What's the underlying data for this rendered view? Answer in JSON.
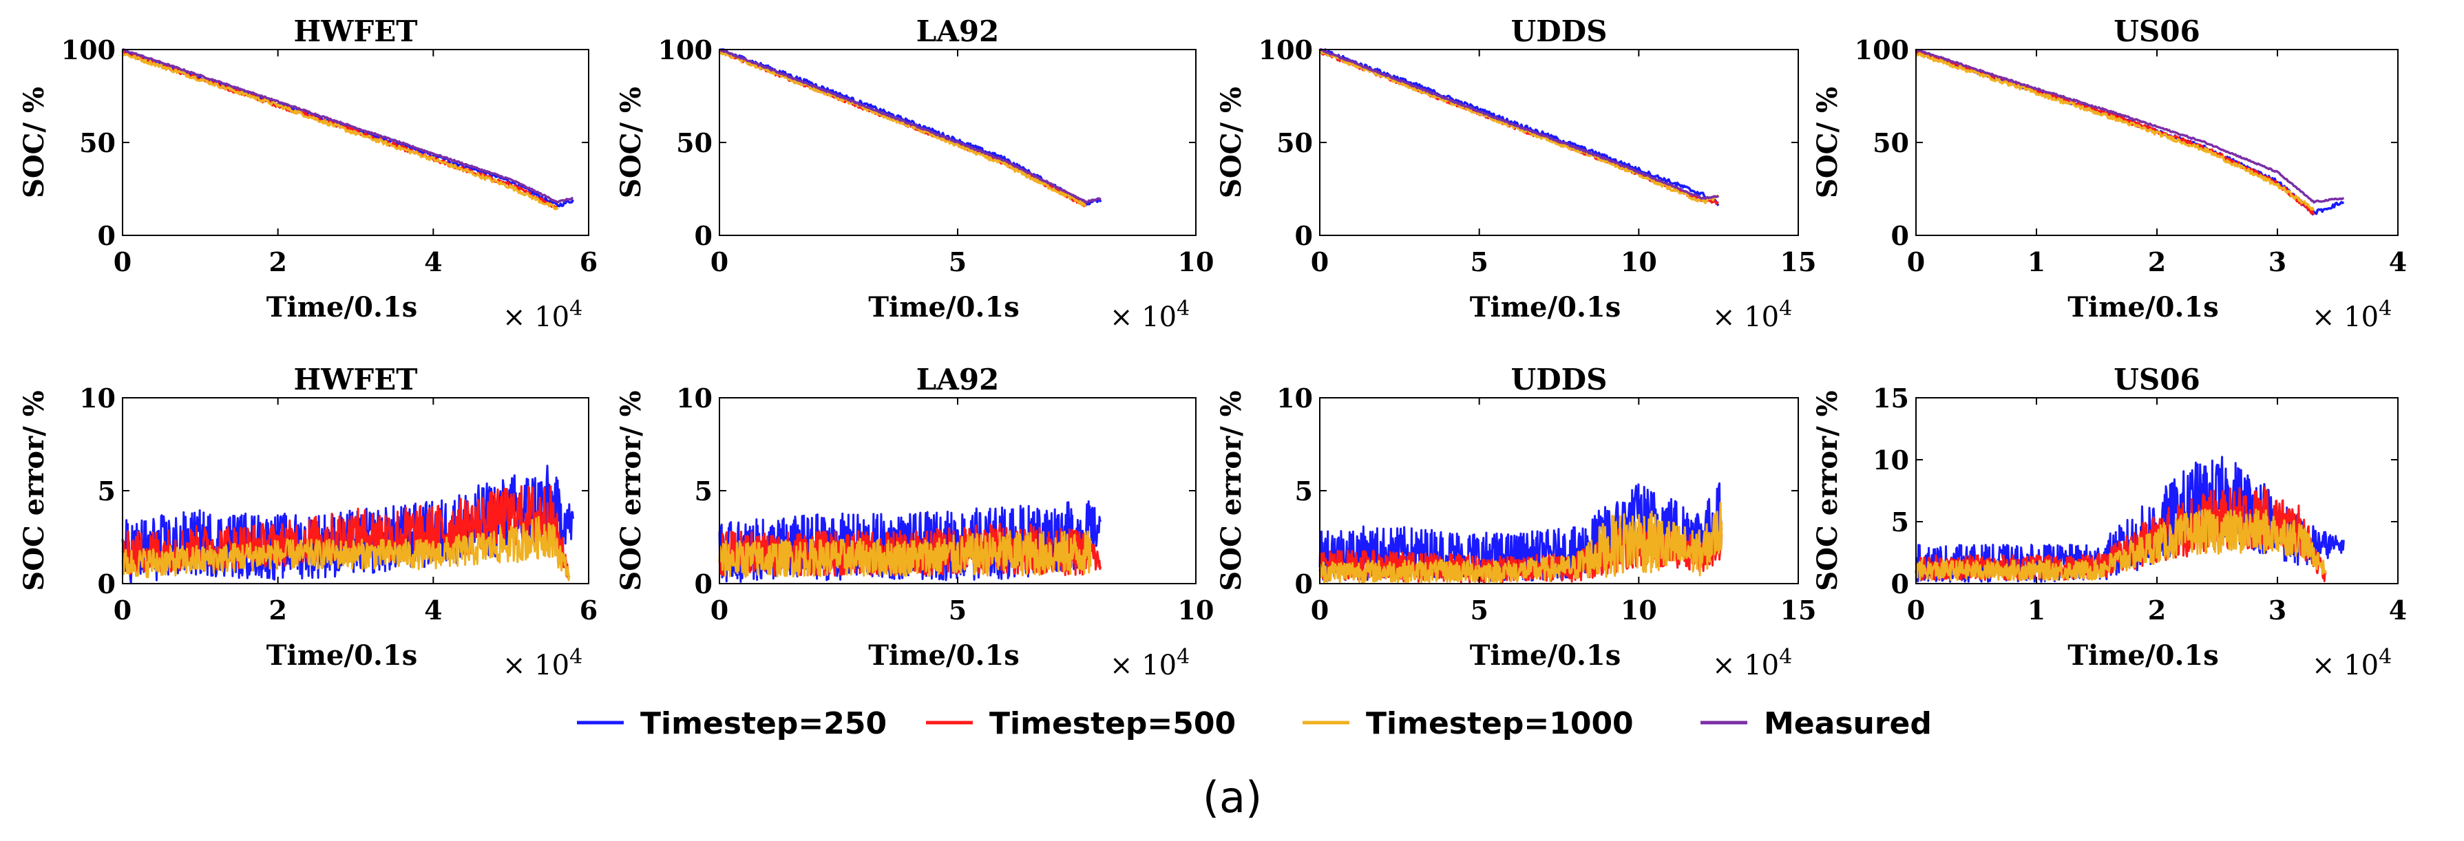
{
  "caption": "(a)",
  "legend": [
    {
      "label": "Timestep=250",
      "color": "#1a1aff"
    },
    {
      "label": "Timestep=500",
      "color": "#ff1a1a"
    },
    {
      "label": "Timestep=1000",
      "color": "#f0b020"
    },
    {
      "label": "Measured",
      "color": "#7b2fa6"
    }
  ],
  "chart_data": [
    {
      "type": "line",
      "title": "HWFET",
      "xlabel": "Time/0.1s",
      "ylabel": "SOC/ %",
      "x_multiplier": "× 10",
      "x_exponent": "4",
      "xlim": [
        0,
        6
      ],
      "ylim": [
        0,
        100
      ],
      "xticks": [
        0,
        2,
        4,
        6
      ],
      "yticks": [
        0,
        50,
        100
      ],
      "x_end": 5.8,
      "series": [
        {
          "name": "Measured",
          "x": [
            0,
            1,
            2,
            3,
            4,
            5,
            5.6,
            5.8
          ],
          "values": [
            100,
            86,
            72,
            58,
            44,
            30,
            18,
            20
          ]
        },
        {
          "name": "Timestep=250",
          "x": [
            0,
            1,
            2,
            3,
            4,
            5,
            5.6,
            5.8
          ],
          "values": [
            99,
            85,
            71,
            57,
            43,
            29,
            16,
            19
          ]
        },
        {
          "name": "Timestep=500",
          "x": [
            0,
            1,
            2,
            3,
            4,
            5,
            5.6
          ],
          "values": [
            99,
            84,
            70,
            56,
            41,
            27,
            15
          ]
        },
        {
          "name": "Timestep=1000",
          "x": [
            0,
            1,
            2,
            3,
            4,
            5,
            5.6
          ],
          "values": [
            98,
            84,
            70,
            55,
            41,
            26,
            14
          ]
        }
      ]
    },
    {
      "type": "line",
      "title": "LA92",
      "xlabel": "Time/0.1s",
      "ylabel": "SOC/ %",
      "x_multiplier": "× 10",
      "x_exponent": "4",
      "xlim": [
        0,
        10
      ],
      "ylim": [
        0,
        100
      ],
      "xticks": [
        0,
        5,
        10
      ],
      "yticks": [
        0,
        50,
        100
      ],
      "x_end": 8.0,
      "series": [
        {
          "name": "Measured",
          "x": [
            0,
            2,
            4,
            6,
            7.7,
            8.0
          ],
          "values": [
            100,
            80,
            60,
            40,
            18,
            20
          ]
        },
        {
          "name": "Timestep=250",
          "x": [
            0,
            2,
            4,
            6,
            7.7,
            8.0
          ],
          "values": [
            100,
            81,
            61,
            41,
            17,
            19
          ]
        },
        {
          "name": "Timestep=500",
          "x": [
            0,
            2,
            4,
            6,
            7.7
          ],
          "values": [
            99,
            79,
            59,
            39,
            16
          ]
        },
        {
          "name": "Timestep=1000",
          "x": [
            0,
            2,
            4,
            6,
            7.7
          ],
          "values": [
            99,
            79,
            59,
            38,
            16
          ]
        }
      ]
    },
    {
      "type": "line",
      "title": "UDDS",
      "xlabel": "Time/0.1s",
      "ylabel": "SOC/ %",
      "x_multiplier": "× 10",
      "x_exponent": "4",
      "xlim": [
        0,
        15
      ],
      "ylim": [
        0,
        100
      ],
      "xticks": [
        0,
        5,
        10,
        15
      ],
      "yticks": [
        0,
        50,
        100
      ],
      "x_end": 12.5,
      "series": [
        {
          "name": "Measured",
          "x": [
            0,
            3,
            6,
            9,
            12,
            12.5
          ],
          "values": [
            100,
            80,
            60,
            41,
            20,
            21
          ]
        },
        {
          "name": "Timestep=250",
          "x": [
            0,
            3,
            6,
            9,
            12,
            12.5
          ],
          "values": [
            100,
            81,
            61,
            42,
            22,
            17
          ]
        },
        {
          "name": "Timestep=500",
          "x": [
            0,
            3,
            6,
            9,
            12,
            12.5
          ],
          "values": [
            99,
            79,
            59,
            40,
            19,
            18
          ]
        },
        {
          "name": "Timestep=1000",
          "x": [
            0,
            3,
            6,
            9,
            12,
            12.5
          ],
          "values": [
            99,
            79,
            59,
            40,
            18,
            21
          ]
        }
      ]
    },
    {
      "type": "line",
      "title": "US06",
      "xlabel": "Time/0.1s",
      "ylabel": "SOC/ %",
      "x_multiplier": "× 10",
      "x_exponent": "4",
      "xlim": [
        0,
        4
      ],
      "ylim": [
        0,
        100
      ],
      "xticks": [
        0,
        1,
        2,
        3,
        4
      ],
      "yticks": [
        0,
        50,
        100
      ],
      "x_end": 3.55,
      "series": [
        {
          "name": "Measured",
          "x": [
            0,
            0.8,
            1.6,
            2.4,
            3.0,
            3.3,
            3.55
          ],
          "values": [
            100,
            83,
            67,
            50,
            34,
            18,
            20
          ]
        },
        {
          "name": "Timestep=250",
          "x": [
            0,
            0.8,
            1.6,
            2.4,
            3.0,
            3.3,
            3.55
          ],
          "values": [
            99,
            82,
            65,
            47,
            29,
            12,
            18
          ]
        },
        {
          "name": "Timestep=500",
          "x": [
            0,
            0.8,
            1.6,
            2.4,
            3.0,
            3.3
          ],
          "values": [
            99,
            82,
            65,
            47,
            28,
            12
          ]
        },
        {
          "name": "Timestep=1000",
          "x": [
            0,
            0.8,
            1.6,
            2.4,
            3.0,
            3.3
          ],
          "values": [
            98,
            81,
            64,
            46,
            27,
            14
          ]
        }
      ]
    },
    {
      "type": "line",
      "title": "HWFET",
      "xlabel": "Time/0.1s",
      "ylabel": "SOC  error/ %",
      "x_multiplier": "× 10",
      "x_exponent": "4",
      "xlim": [
        0,
        6
      ],
      "ylim": [
        0,
        10
      ],
      "xticks": [
        0,
        2,
        4,
        6
      ],
      "yticks": [
        0,
        5,
        10
      ],
      "x_end": 5.8,
      "series": [
        {
          "name": "Timestep=250",
          "x": [
            0,
            1,
            2,
            3,
            4,
            5,
            5.5,
            5.8
          ],
          "values": [
            1.5,
            2.0,
            1.8,
            2.0,
            2.5,
            3.5,
            4.0,
            3.0
          ],
          "amplitude": [
            1.8,
            1.8,
            1.8,
            1.8,
            1.8,
            2.2,
            2.2,
            1.0
          ]
        },
        {
          "name": "Timestep=500",
          "x": [
            0,
            1,
            2,
            3,
            4,
            5,
            5.5,
            5.75
          ],
          "values": [
            1.5,
            1.8,
            2.0,
            2.5,
            2.5,
            3.5,
            3.5,
            0.5
          ],
          "amplitude": [
            1.2,
            1.2,
            1.2,
            1.4,
            1.6,
            1.6,
            1.8,
            0.5
          ]
        },
        {
          "name": "Timestep=1000",
          "x": [
            0,
            1,
            2,
            3,
            4,
            5,
            5.5,
            5.75
          ],
          "values": [
            1.0,
            1.2,
            1.5,
            1.5,
            1.5,
            2.0,
            2.5,
            0.5
          ],
          "amplitude": [
            0.8,
            0.8,
            0.8,
            0.8,
            0.8,
            1.0,
            1.2,
            0.4
          ]
        }
      ]
    },
    {
      "type": "line",
      "title": "LA92",
      "xlabel": "Time/0.1s",
      "ylabel": "SOC  error/ %",
      "x_multiplier": "× 10",
      "x_exponent": "4",
      "xlim": [
        0,
        10
      ],
      "ylim": [
        0,
        10
      ],
      "xticks": [
        0,
        5,
        10
      ],
      "yticks": [
        0,
        5,
        10
      ],
      "x_end": 8.0,
      "series": [
        {
          "name": "Timestep=250",
          "x": [
            0,
            2,
            4,
            6,
            7.8,
            8.0
          ],
          "values": [
            1.5,
            1.8,
            1.8,
            2.0,
            2.5,
            3.0
          ],
          "amplitude": [
            1.6,
            1.8,
            1.8,
            2.0,
            1.8,
            0.5
          ]
        },
        {
          "name": "Timestep=500",
          "x": [
            0,
            2,
            4,
            6,
            7.8,
            8.0
          ],
          "values": [
            1.5,
            1.5,
            1.5,
            1.8,
            1.5,
            1.0
          ],
          "amplitude": [
            1.2,
            1.2,
            1.2,
            1.4,
            1.2,
            0.4
          ]
        },
        {
          "name": "Timestep=1000",
          "x": [
            0,
            2,
            4,
            6,
            7.8
          ],
          "values": [
            1.2,
            1.3,
            1.3,
            1.5,
            1.5
          ],
          "amplitude": [
            1.0,
            1.0,
            1.0,
            1.2,
            1.2
          ]
        }
      ]
    },
    {
      "type": "line",
      "title": "UDDS",
      "xlabel": "Time/0.1s",
      "ylabel": "SOC  error/ %",
      "x_multiplier": "× 10",
      "x_exponent": "4",
      "xlim": [
        0,
        15
      ],
      "ylim": [
        0,
        10
      ],
      "xticks": [
        0,
        5,
        10,
        15
      ],
      "yticks": [
        0,
        5,
        10
      ],
      "x_end": 12.6,
      "series": [
        {
          "name": "Timestep=250",
          "x": [
            0,
            3,
            6,
            8,
            9,
            10,
            11,
            12,
            12.6
          ],
          "values": [
            1.5,
            1.5,
            1.3,
            1.5,
            2.5,
            3.5,
            3.0,
            2.5,
            4.0
          ],
          "amplitude": [
            1.5,
            1.4,
            1.3,
            1.4,
            1.6,
            1.8,
            1.6,
            1.5,
            1.5
          ]
        },
        {
          "name": "Timestep=500",
          "x": [
            0,
            3,
            6,
            8,
            9,
            10,
            11,
            12,
            12.6
          ],
          "values": [
            1.0,
            0.8,
            0.7,
            0.8,
            1.5,
            2.0,
            1.8,
            1.5,
            2.0
          ],
          "amplitude": [
            0.8,
            0.8,
            0.7,
            0.8,
            1.2,
            1.2,
            1.0,
            1.0,
            0.8
          ]
        },
        {
          "name": "Timestep=1000",
          "x": [
            0,
            3,
            6,
            8,
            9,
            10,
            11,
            12,
            12.6
          ],
          "values": [
            0.6,
            0.6,
            0.6,
            0.8,
            1.8,
            2.2,
            1.8,
            1.5,
            3.0
          ],
          "amplitude": [
            0.6,
            0.6,
            0.6,
            0.7,
            1.6,
            1.8,
            1.5,
            1.2,
            1.5
          ]
        }
      ]
    },
    {
      "type": "line",
      "title": "US06",
      "xlabel": "Time/0.1s",
      "ylabel": "SOC  error/ %",
      "x_multiplier": "× 10",
      "x_exponent": "4",
      "xlim": [
        0,
        4
      ],
      "ylim": [
        0,
        15
      ],
      "xticks": [
        0,
        1,
        2,
        3,
        4
      ],
      "yticks": [
        0,
        5,
        10,
        15
      ],
      "x_end": 3.55,
      "series": [
        {
          "name": "Timestep=250",
          "x": [
            0,
            0.5,
            1,
            1.5,
            2,
            2.3,
            2.6,
            2.9,
            3.2,
            3.55
          ],
          "values": [
            1.5,
            1.5,
            1.5,
            1.5,
            4.0,
            6.0,
            6.5,
            5.0,
            3.0,
            3.0
          ],
          "amplitude": [
            1.5,
            1.5,
            1.5,
            1.5,
            3.0,
            3.5,
            3.5,
            3.0,
            2.0,
            0.5
          ]
        },
        {
          "name": "Timestep=500",
          "x": [
            0,
            0.5,
            1,
            1.5,
            2,
            2.3,
            2.6,
            2.9,
            3.2,
            3.4
          ],
          "values": [
            1.2,
            1.2,
            1.2,
            1.2,
            3.5,
            4.5,
            5.0,
            5.0,
            4.0,
            0.5
          ],
          "amplitude": [
            1.0,
            1.0,
            1.0,
            1.0,
            2.0,
            2.5,
            2.5,
            2.5,
            2.0,
            0.5
          ]
        },
        {
          "name": "Timestep=1000",
          "x": [
            0,
            0.5,
            1,
            1.5,
            2,
            2.3,
            2.6,
            2.9,
            3.2,
            3.4
          ],
          "values": [
            1.0,
            1.0,
            1.0,
            1.0,
            3.0,
            4.0,
            4.0,
            4.0,
            3.5,
            1.0
          ],
          "amplitude": [
            0.8,
            0.8,
            0.8,
            0.8,
            1.5,
            1.8,
            1.8,
            1.8,
            1.5,
            0.5
          ]
        }
      ]
    }
  ]
}
